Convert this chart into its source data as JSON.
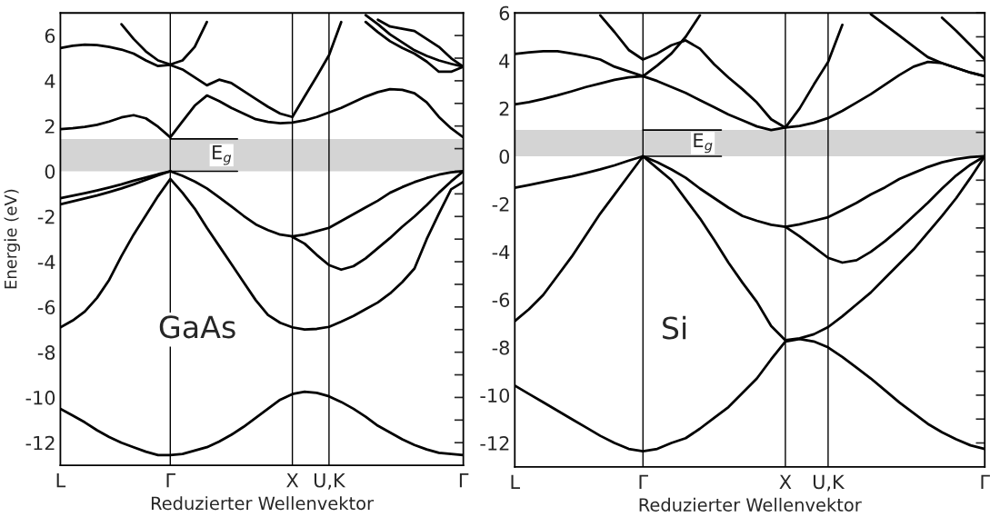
{
  "chart_data": [
    {
      "type": "line",
      "xlabel": "Reduzierter Wellenvektor",
      "ylabel": "Energie (eV)",
      "categories": [
        "L",
        null,
        null,
        null,
        null,
        null,
        null,
        null,
        null,
        "Γ",
        null,
        null,
        null,
        null,
        null,
        null,
        null,
        null,
        null,
        "X",
        null,
        null,
        "U,K",
        null,
        null,
        null,
        null,
        null,
        null,
        null,
        null,
        null,
        null,
        "Γ"
      ],
      "ylim": [
        -13,
        7
      ],
      "yticks": [
        -12,
        {
          "value": -11,
          "label": null
        },
        -10,
        {
          "value": -9,
          "label": null
        },
        -8,
        {
          "value": -7,
          "label": null
        },
        -6,
        {
          "value": -5,
          "label": null
        },
        -4,
        {
          "value": -3,
          "label": null
        },
        -2,
        {
          "value": -1,
          "label": null
        },
        0,
        {
          "value": 1,
          "label": null
        },
        2,
        {
          "value": 3,
          "label": null
        },
        4,
        {
          "value": 5,
          "label": null
        },
        6
      ],
      "ref_lines": [
        {
          "axis": "x",
          "value": "Γ",
          "color": "#000000"
        },
        {
          "axis": "x",
          "value": "X",
          "color": "#000000"
        },
        {
          "axis": "x",
          "value": "U,K",
          "color": "#000000"
        }
      ],
      "bands": [
        {
          "axis": "y",
          "from": 0,
          "to": 1.43,
          "color": "#d4d4d4"
        }
      ],
      "annotations": [
        "GaAs",
        {
          "text": "E$_{g}$",
          "x": "Γ",
          "y": 0.71
        }
      ],
      "series": [
        {
          "color": "#000000",
          "values": [
            1.86,
            1.9,
            1.96,
            2.05,
            2.2,
            2.38,
            2.48,
            2.34,
            1.97,
            1.5,
            2.2,
            2.9,
            3.35,
            3.1,
            2.8,
            2.55,
            2.3,
            2.18,
            2.12,
            2.15,
            2.25,
            2.4,
            2.6,
            2.8,
            3.05,
            3.3,
            3.5,
            3.63,
            3.6,
            3.45,
            3.05,
            2.4,
            1.9,
            1.5
          ]
        },
        {
          "color": "#000000",
          "values": [
            5.45,
            5.55,
            5.6,
            5.58,
            5.5,
            5.38,
            5.2,
            4.9,
            4.65,
            4.7,
            4.5,
            4.15,
            3.8,
            4.05,
            3.9,
            3.55,
            3.2,
            2.85,
            2.55,
            2.4,
            3.3,
            4.2,
            5.13,
            6.6,
            null,
            null,
            null,
            null,
            null,
            null,
            null,
            null,
            null,
            null
          ]
        },
        {
          "color": "#000000",
          "values": [
            null,
            null,
            null,
            null,
            null,
            6.5,
            5.85,
            5.3,
            4.9,
            4.72,
            4.9,
            5.5,
            6.6,
            null,
            null,
            null,
            null,
            null,
            null,
            null,
            null,
            null,
            null,
            null,
            null,
            null,
            null,
            null,
            null,
            null,
            null,
            null,
            null,
            null
          ]
        },
        {
          "color": "#000000",
          "values": [
            null,
            null,
            null,
            null,
            null,
            null,
            null,
            null,
            null,
            null,
            null,
            null,
            null,
            null,
            null,
            null,
            null,
            null,
            null,
            null,
            null,
            null,
            null,
            null,
            null,
            6.6,
            6.15,
            5.75,
            5.45,
            5.2,
            4.85,
            4.4,
            4.4,
            4.62
          ]
        },
        {
          "color": "#000000",
          "values": [
            null,
            null,
            null,
            null,
            null,
            null,
            null,
            null,
            null,
            null,
            null,
            null,
            null,
            null,
            null,
            null,
            null,
            null,
            null,
            null,
            null,
            null,
            null,
            null,
            null,
            6.9,
            6.5,
            6.05,
            5.7,
            5.35,
            5.1,
            4.9,
            4.75,
            4.62
          ]
        },
        {
          "color": "#000000",
          "values": [
            null,
            null,
            null,
            null,
            null,
            null,
            null,
            null,
            null,
            null,
            null,
            null,
            null,
            null,
            null,
            null,
            null,
            null,
            null,
            null,
            null,
            null,
            null,
            null,
            null,
            null,
            6.7,
            6.4,
            6.3,
            6.2,
            5.85,
            5.5,
            5.0,
            4.62
          ]
        },
        {
          "color": "#000000",
          "values": [
            -1.19,
            -1.08,
            -0.97,
            -0.85,
            -0.72,
            -0.58,
            -0.42,
            -0.28,
            -0.13,
            0,
            null,
            null,
            null,
            null,
            null,
            null,
            null,
            null,
            null,
            null,
            null,
            null,
            null,
            null,
            null,
            null,
            null,
            null,
            null,
            null,
            null,
            null,
            null,
            null
          ]
        },
        {
          "color": "#000000",
          "values": [
            -1.46,
            -1.33,
            -1.2,
            -1.07,
            -0.92,
            -0.76,
            -0.58,
            -0.38,
            -0.18,
            0,
            null,
            null,
            null,
            null,
            null,
            null,
            null,
            null,
            null,
            null,
            null,
            null,
            null,
            null,
            null,
            null,
            null,
            null,
            null,
            null,
            null,
            null,
            null,
            null
          ]
        },
        {
          "color": "#000000",
          "values": [
            null,
            null,
            null,
            null,
            null,
            null,
            null,
            null,
            null,
            0,
            -0.2,
            -0.45,
            -0.76,
            -1.15,
            -1.55,
            -1.97,
            -2.35,
            -2.6,
            -2.8,
            -2.88,
            -2.8,
            -2.65,
            -2.5,
            -2.2,
            -1.9,
            -1.6,
            -1.3,
            -0.95,
            -0.7,
            -0.48,
            -0.3,
            -0.15,
            -0.05,
            0
          ]
        },
        {
          "color": "#000000",
          "values": [
            null,
            null,
            null,
            null,
            null,
            null,
            null,
            null,
            null,
            null,
            null,
            null,
            null,
            null,
            null,
            null,
            null,
            null,
            null,
            -2.9,
            -3.2,
            -3.7,
            -4.15,
            -4.35,
            -4.2,
            -3.85,
            -3.4,
            -2.95,
            -2.45,
            -2.0,
            -1.5,
            -0.95,
            -0.45,
            0
          ]
        },
        {
          "color": "#000000",
          "values": [
            -6.9,
            -6.6,
            -6.2,
            -5.6,
            -4.8,
            -3.75,
            -2.8,
            -1.95,
            -1.1,
            -0.34,
            -0.95,
            -1.65,
            -2.5,
            -3.3,
            -4.1,
            -4.9,
            -5.7,
            -6.35,
            -6.7,
            -6.9,
            -7.0,
            -6.97,
            -6.88,
            -6.65,
            -6.4,
            -6.1,
            -5.8,
            -5.4,
            -4.9,
            -4.3,
            -3.0,
            -1.87,
            -0.8,
            -0.47
          ]
        },
        {
          "color": "#000000",
          "values": [
            -10.5,
            -10.8,
            -11.1,
            -11.45,
            -11.75,
            -12.0,
            -12.2,
            -12.4,
            -12.55,
            -12.55,
            -12.5,
            -12.35,
            -12.2,
            -11.95,
            -11.65,
            -11.3,
            -10.9,
            -10.5,
            -10.1,
            -9.85,
            -9.75,
            -9.8,
            -9.95,
            -10.2,
            -10.5,
            -10.85,
            -11.25,
            -11.55,
            -11.85,
            -12.1,
            -12.3,
            -12.45,
            -12.5,
            -12.55
          ]
        }
      ]
    },
    {
      "type": "line",
      "xlabel": "Reduzierter Wellenvektor",
      "categories": [
        "L",
        null,
        null,
        null,
        null,
        null,
        null,
        null,
        null,
        "Γ",
        null,
        null,
        null,
        null,
        null,
        null,
        null,
        null,
        null,
        "X",
        null,
        null,
        "U,K",
        null,
        null,
        null,
        null,
        null,
        null,
        null,
        null,
        null,
        null,
        "Γ"
      ],
      "ylim": [
        -13,
        6
      ],
      "yticks": [
        -12,
        {
          "value": -11,
          "label": null
        },
        -10,
        {
          "value": -9,
          "label": null
        },
        -8,
        {
          "value": -7,
          "label": null
        },
        -6,
        {
          "value": -5,
          "label": null
        },
        -4,
        {
          "value": -3,
          "label": null
        },
        -2,
        {
          "value": -1,
          "label": null
        },
        0,
        {
          "value": 1,
          "label": null
        },
        2,
        {
          "value": 3,
          "label": null
        },
        4,
        {
          "value": 5,
          "label": null
        },
        6
      ],
      "ref_lines": [
        {
          "axis": "x",
          "value": "Γ",
          "color": "#000000"
        },
        {
          "axis": "x",
          "value": "X",
          "color": "#000000"
        },
        {
          "axis": "x",
          "value": "U,K",
          "color": "#000000"
        }
      ],
      "bands": [
        {
          "axis": "y",
          "from": 0,
          "to": 1.1,
          "color": "#d4d4d4"
        }
      ],
      "annotations": [
        "Si",
        {
          "text": "E$_{g}$",
          "x": "Γ",
          "y": 0.55
        }
      ],
      "series": [
        {
          "color": "#000000",
          "values": [
            null,
            null,
            null,
            null,
            null,
            null,
            5.9,
            5.2,
            4.45,
            4.05,
            4.3,
            4.65,
            4.85,
            4.5,
            3.85,
            3.3,
            2.8,
            2.25,
            1.55,
            1.2,
            2.0,
            3.0,
            3.95,
            5.5,
            null,
            null,
            null,
            null,
            null,
            null,
            null,
            null,
            null,
            null
          ]
        },
        {
          "color": "#000000",
          "values": [
            2.17,
            2.27,
            2.4,
            2.55,
            2.72,
            2.9,
            3.05,
            3.2,
            3.3,
            3.35,
            3.15,
            2.9,
            2.65,
            2.35,
            2.05,
            1.75,
            1.5,
            1.25,
            1.1,
            1.2,
            1.27,
            1.4,
            1.6,
            1.9,
            2.25,
            2.6,
            3.0,
            3.4,
            3.75,
            3.95,
            3.9,
            3.7,
            3.5,
            3.35
          ]
        },
        {
          "color": "#000000",
          "values": [
            4.28,
            4.35,
            4.4,
            4.4,
            4.3,
            4.2,
            4.05,
            3.75,
            3.55,
            3.35,
            3.8,
            4.3,
            5.0,
            5.9,
            null,
            null,
            null,
            null,
            null,
            null,
            null,
            null,
            null,
            null,
            null,
            null,
            null,
            null,
            null,
            null,
            null,
            null,
            null,
            null
          ]
        },
        {
          "color": "#000000",
          "values": [
            null,
            null,
            null,
            null,
            null,
            null,
            null,
            null,
            null,
            null,
            null,
            null,
            null,
            null,
            null,
            null,
            null,
            null,
            null,
            null,
            null,
            null,
            null,
            null,
            null,
            5.95,
            5.5,
            5.05,
            4.6,
            4.15,
            3.9,
            3.7,
            3.5,
            3.35
          ]
        },
        {
          "color": "#000000",
          "values": [
            null,
            null,
            null,
            null,
            null,
            null,
            null,
            null,
            null,
            null,
            null,
            null,
            null,
            null,
            null,
            null,
            null,
            null,
            null,
            null,
            null,
            null,
            null,
            null,
            null,
            null,
            null,
            null,
            null,
            null,
            5.8,
            5.25,
            4.65,
            4.05
          ]
        },
        {
          "color": "#000000",
          "values": [
            -1.32,
            -1.2,
            -1.08,
            -0.96,
            -0.84,
            -0.7,
            -0.55,
            -0.38,
            -0.18,
            0,
            null,
            null,
            null,
            null,
            null,
            null,
            null,
            null,
            null,
            null,
            null,
            null,
            null,
            null,
            null,
            null,
            null,
            null,
            null,
            null,
            null,
            null,
            null,
            null
          ]
        },
        {
          "color": "#000000",
          "values": [
            null,
            null,
            null,
            null,
            null,
            null,
            null,
            null,
            null,
            0,
            -0.25,
            -0.55,
            -0.9,
            -1.35,
            -1.75,
            -2.15,
            -2.5,
            -2.7,
            -2.87,
            -2.95,
            -2.85,
            -2.7,
            -2.55,
            -2.25,
            -1.95,
            -1.6,
            -1.3,
            -0.95,
            -0.7,
            -0.45,
            -0.25,
            -0.12,
            -0.03,
            0
          ]
        },
        {
          "color": "#000000",
          "values": [
            null,
            null,
            null,
            null,
            null,
            null,
            null,
            null,
            null,
            null,
            null,
            null,
            null,
            null,
            null,
            null,
            null,
            null,
            null,
            -2.95,
            -3.35,
            -3.8,
            -4.25,
            -4.45,
            -4.35,
            -4.0,
            -3.55,
            -3.05,
            -2.5,
            -1.95,
            -1.35,
            -0.8,
            -0.35,
            0
          ]
        },
        {
          "color": "#000000",
          "values": [
            -6.9,
            -6.4,
            -5.8,
            -5.0,
            -4.2,
            -3.3,
            -2.4,
            -1.6,
            -0.8,
            0,
            -0.5,
            -1.0,
            -1.8,
            -2.6,
            -3.5,
            -4.45,
            -5.3,
            -6.1,
            -7.1,
            -7.7,
            -7.62,
            -7.45,
            -7.15,
            -6.7,
            -6.2,
            -5.7,
            -5.1,
            -4.5,
            -3.9,
            -3.2,
            -2.5,
            -1.75,
            -0.9,
            0
          ]
        },
        {
          "color": "#000000",
          "values": [
            -9.6,
            -9.95,
            -10.3,
            -10.65,
            -11.0,
            -11.35,
            -11.7,
            -12.0,
            -12.25,
            -12.35,
            -12.25,
            -12.0,
            -11.8,
            -11.4,
            -10.95,
            -10.5,
            -9.9,
            -9.3,
            -8.5,
            -7.75,
            -7.65,
            -7.75,
            -8.0,
            -8.4,
            -8.85,
            -9.3,
            -9.8,
            -10.3,
            -10.75,
            -11.2,
            -11.55,
            -11.85,
            -12.1,
            -12.25
          ]
        }
      ]
    }
  ]
}
